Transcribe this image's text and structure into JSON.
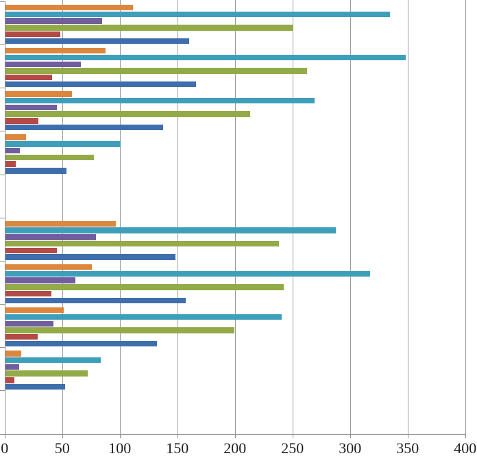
{
  "chart_data": {
    "type": "bar",
    "orientation": "horizontal",
    "title": "",
    "xlabel": "",
    "ylabel": "",
    "legend": "none",
    "grid": "vertical-major",
    "background_color": "#FFFFFF",
    "axis_color": "#8E8E8E",
    "gridline_color": "#9B9B9B",
    "x_axis": {
      "min": 0,
      "max": 400,
      "tick_interval": 50,
      "tick_labels": [
        "0",
        "50",
        "100",
        "150",
        "200",
        "250",
        "300",
        "350",
        "400"
      ]
    },
    "categories": [
      "",
      "",
      "",
      "",
      "",
      "",
      "",
      "",
      "",
      ""
    ],
    "category_note": "10 unlabeled category slots; slots 5 and 10 are empty spacers",
    "series_order": "top-to-bottom within each category group",
    "series": [
      {
        "name": "series-orange",
        "color": "#DD873D",
        "values": [
          111,
          87,
          58,
          18,
          null,
          96,
          75,
          51,
          14,
          null
        ]
      },
      {
        "name": "series-teal",
        "color": "#3E9FBA",
        "values": [
          334,
          348,
          269,
          100,
          null,
          287,
          317,
          240,
          83,
          null
        ]
      },
      {
        "name": "series-purple",
        "color": "#715E9E",
        "values": [
          84,
          66,
          45,
          13,
          null,
          79,
          61,
          42,
          12,
          null
        ]
      },
      {
        "name": "series-green",
        "color": "#93AA48",
        "values": [
          250,
          262,
          213,
          77,
          null,
          238,
          242,
          199,
          72,
          null
        ]
      },
      {
        "name": "series-red",
        "color": "#B34A46",
        "values": [
          48,
          41,
          29,
          9,
          null,
          45,
          40,
          28,
          8,
          null
        ]
      },
      {
        "name": "series-blue",
        "color": "#3F6EAC",
        "values": [
          160,
          166,
          137,
          53,
          null,
          148,
          157,
          132,
          52,
          null
        ]
      }
    ]
  }
}
